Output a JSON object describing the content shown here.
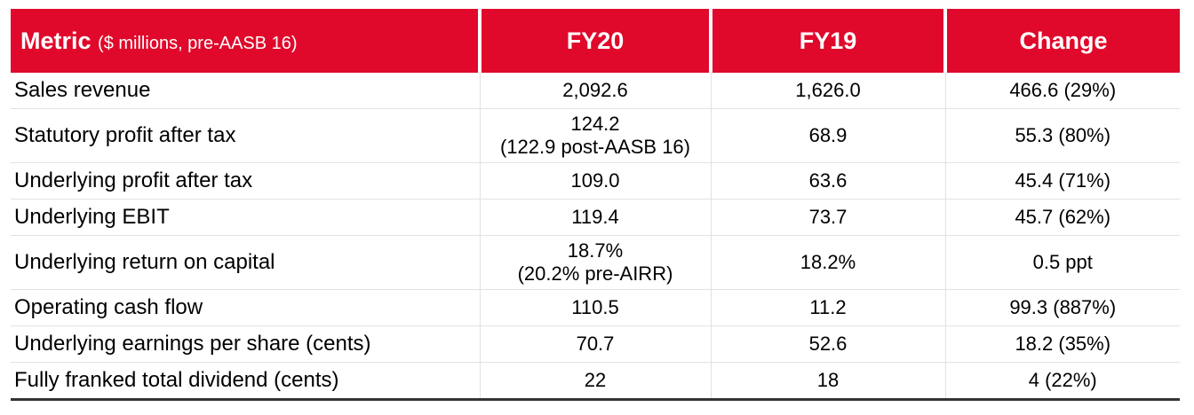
{
  "table": {
    "header": {
      "metric_label": "Metric",
      "metric_sublabel": "($ millions, pre-AASB 16)",
      "fy20": "FY20",
      "fy19": "FY19",
      "change": "Change"
    },
    "rows": [
      {
        "metric": "Sales revenue",
        "fy20": "2,092.6",
        "fy20_note": "",
        "fy19": "1,626.0",
        "change": "466.6 (29%)"
      },
      {
        "metric": "Statutory profit after tax",
        "fy20": "124.2",
        "fy20_note": "(122.9 post-AASB 16)",
        "fy19": "68.9",
        "change": "55.3 (80%)"
      },
      {
        "metric": "Underlying profit after tax",
        "fy20": "109.0",
        "fy20_note": "",
        "fy19": "63.6",
        "change": "45.4 (71%)"
      },
      {
        "metric": "Underlying EBIT",
        "fy20": "119.4",
        "fy20_note": "",
        "fy19": "73.7",
        "change": "45.7 (62%)"
      },
      {
        "metric": "Underlying return on capital",
        "fy20": "18.7%",
        "fy20_note": "(20.2% pre-AIRR)",
        "fy19": "18.2%",
        "change": "0.5 ppt"
      },
      {
        "metric": "Operating cash flow",
        "fy20": "110.5",
        "fy20_note": "",
        "fy19": "11.2",
        "change": "99.3 (887%)"
      },
      {
        "metric": "Underlying earnings per share (cents)",
        "fy20": "70.7",
        "fy20_note": "",
        "fy19": "52.6",
        "change": "18.2 (35%)"
      },
      {
        "metric": "Fully franked total dividend (cents)",
        "fy20": "22",
        "fy20_note": "",
        "fy19": "18",
        "change": "4 (22%)"
      }
    ],
    "colors": {
      "header_bg": "#e0092b",
      "header_text": "#ffffff",
      "grid": "#e2e2e2",
      "bottom_rule": "#333333"
    }
  }
}
